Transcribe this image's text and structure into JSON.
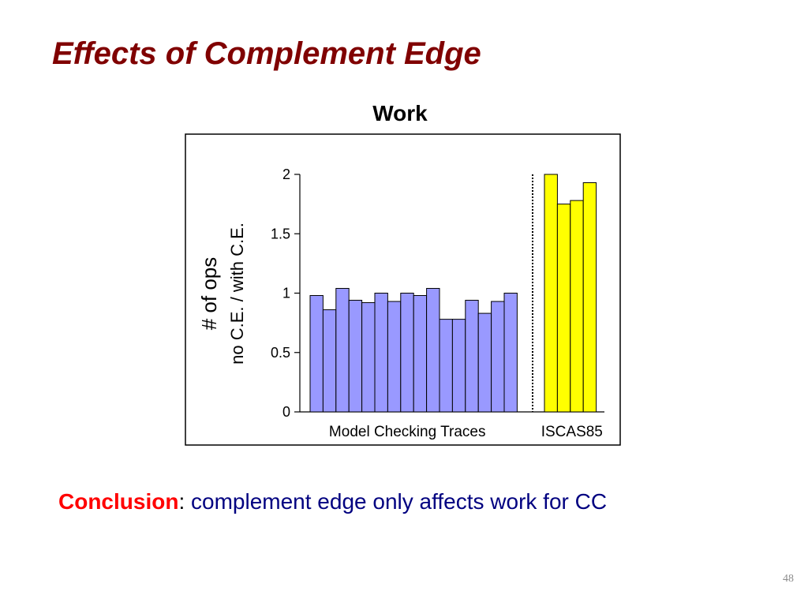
{
  "slide": {
    "title": "Effects of Complement Edge",
    "number": "48"
  },
  "conclusion": {
    "label": "Conclusion",
    "colon": ":",
    "text": "complement edge only affects work for CC"
  },
  "colors": {
    "title": "#800000",
    "conclusion_label": "#ff0000",
    "conclusion_text": "#000080",
    "model_checking_bars": "#9999ff",
    "iscas85_bars": "#ffff00"
  },
  "chart_data": {
    "type": "bar",
    "title": "Work",
    "ylabel_line1": "# of ops",
    "ylabel_line2": "no C.E. / with C.E.",
    "ylim": [
      0,
      2
    ],
    "yticks": [
      "0",
      "0.5",
      "1",
      "1.5",
      "2"
    ],
    "grid": false,
    "groups": [
      {
        "name": "Model Checking Traces",
        "color": "#9999ff",
        "values": [
          0.98,
          0.86,
          1.04,
          0.94,
          0.92,
          1.0,
          0.93,
          1.0,
          0.98,
          1.04,
          0.78,
          0.78,
          0.94,
          0.83,
          0.93,
          1.0
        ]
      },
      {
        "name": "ISCAS85",
        "color": "#ffff00",
        "values": [
          2.0,
          1.75,
          1.78,
          1.93
        ]
      }
    ],
    "separator": "dotted"
  }
}
